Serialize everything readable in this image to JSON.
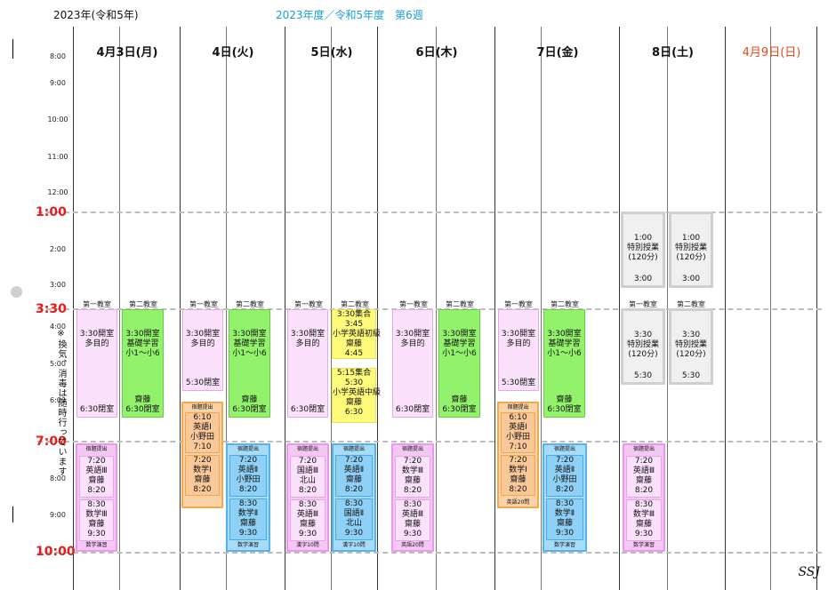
{
  "header": {
    "year": "2023年(令和5年)",
    "week": "2023年度／令和5年度　第6週"
  },
  "days": [
    {
      "label": "4月3日(月)"
    },
    {
      "label": "4日(火)"
    },
    {
      "label": "5日(水)"
    },
    {
      "label": "6日(木)"
    },
    {
      "label": "7日(金)"
    },
    {
      "label": "8日(土)"
    },
    {
      "label": "4月9日(日)"
    }
  ],
  "times": {
    "t8": "8:00",
    "t9": "9:00",
    "t10": "10:00",
    "t11": "11:00",
    "t12": "12:00",
    "t1": "1:00",
    "t2": "2:00",
    "t3": "3:00",
    "t330": "3:30",
    "t4": "4:00",
    "t5": "5:00",
    "t6": "6:00",
    "t7": "7:00",
    "t8p": "8:00",
    "t9p": "9:00",
    "t10p": "10:00"
  },
  "rooms": {
    "r1": "第一教室",
    "r2": "第二教室"
  },
  "note": "※換気、消毒は随時行っています",
  "blocks": {
    "open_multi": "3:30開室\n多目的",
    "close_630": "6:30閉室",
    "basic": "3:30開室\n基礎学習\n小1～小6",
    "saito_close": "齋藤\n6:30閉室",
    "close_530": "5:30閉室",
    "hw": "宿題提出",
    "eng1": "6:10\n英語Ⅰ\n小野田\n7:10",
    "math1": "7:20\n数学Ⅰ\n齋藤\n8:20",
    "eng3a": "7:20\n英語Ⅲ\n齋藤\n8:20",
    "math3b": "8:30\n数学Ⅲ\n齋藤\n9:30",
    "math_prac": "数学演習",
    "eng2a": "7:20\n英語Ⅱ\n小野田\n8:20",
    "math2b": "8:30\n数学Ⅱ\n齋藤\n9:30",
    "jp3a": "7:20\n国語Ⅲ\n北山\n8:20",
    "eng3b": "8:30\n英語Ⅲ\n齋藤\n9:30",
    "kanji10": "漢字10問",
    "eng2w": "7:20\n英語Ⅱ\n齋藤\n8:20",
    "jp2b": "8:30\n国語Ⅱ\n北山\n9:30",
    "kanji10q": "漢字10問",
    "math3a": "7:20\n数学Ⅲ\n齋藤\n8:20",
    "eng20": "英語20問",
    "eng20b": "英語20問",
    "wed_gather1": "3:30集合\n3:45\n小学英語初級\n齋藤\n4:45",
    "wed_gather2": "5:15集合\n5:30\n小学英語中級\n齋藤\n6:30",
    "special": "1:00\n特別授業\n(120分)",
    "sp_end": "3:00",
    "special2": "3:30\n特別授業\n(120分)",
    "sp_end2": "5:30"
  },
  "signature": "SSJ"
}
